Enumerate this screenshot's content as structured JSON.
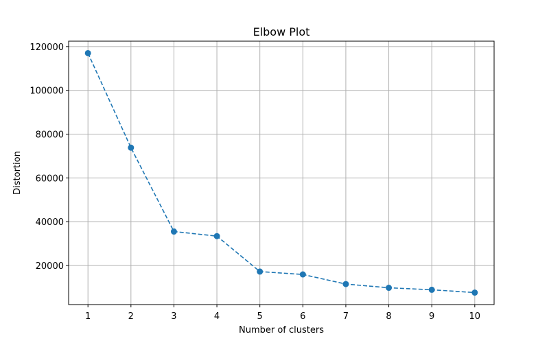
{
  "chart_data": {
    "type": "line",
    "title": "Elbow Plot",
    "xlabel": "Number of clusters",
    "ylabel": "Distortion",
    "x": [
      1,
      2,
      3,
      4,
      5,
      6,
      7,
      8,
      9,
      10
    ],
    "series": [
      {
        "values": [
          117000,
          73800,
          35500,
          33400,
          17200,
          15900,
          11500,
          9800,
          8900,
          7600
        ],
        "color": "#1f77b4",
        "line_style": "dashed",
        "marker": "circle"
      }
    ],
    "xticks": [
      "1",
      "2",
      "3",
      "4",
      "5",
      "6",
      "7",
      "8",
      "9",
      "10"
    ],
    "yticks": [
      "20000",
      "40000",
      "60000",
      "80000",
      "100000",
      "120000"
    ],
    "ytick_values": [
      20000,
      40000,
      60000,
      80000,
      100000,
      120000
    ],
    "xlim": [
      0.55,
      10.45
    ],
    "ylim": [
      2130,
      122470
    ],
    "grid": true
  }
}
